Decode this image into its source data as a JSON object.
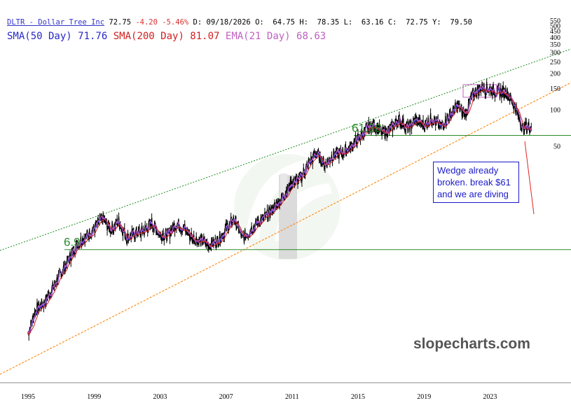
{
  "header": {
    "symbol": "DLTR - Dollar Tree Inc",
    "last": "72.75",
    "change": "-4.20",
    "change_pct": "-5.46%",
    "date_label": "D:",
    "date": "09/18/2026",
    "open_label": "O:",
    "open": "64.75",
    "high_label": "H:",
    "high": "78.35",
    "low_label": "L:",
    "low": "63.16",
    "close_label": "C:",
    "close": "72.75",
    "y_label": "Y:",
    "y_value": "79.50"
  },
  "indicators": [
    {
      "text": "SMA(50 Day) 71.76",
      "color": "#2828c8"
    },
    {
      "text": "SMA(200 Day) 81.07",
      "color": "#d02020"
    },
    {
      "text": "EMA(21 Day) 68.63",
      "color": "#c060c0"
    }
  ],
  "annotations": {
    "note": "Wedge already broken. break $61 and we are diving",
    "level_low": "6.9",
    "level_high": "61.38",
    "watermark": "slopecharts.com"
  },
  "colors": {
    "price": "#000000",
    "sma50": "#2828c8",
    "sma200": "#d02020",
    "ema21": "#c060c0",
    "support": "#2a8a2a",
    "upper_trend": "#1a8a1a",
    "lower_trend": "#ff8c1a",
    "note_border": "#1a1acc",
    "arrow": "#e02020"
  },
  "chart_data": {
    "type": "line",
    "y_scale": "log",
    "x_ticks": [
      "1995",
      "1999",
      "2003",
      "2007",
      "2011",
      "2015",
      "2019",
      "2023"
    ],
    "y_ticks": [
      50,
      100,
      150,
      200,
      250,
      300,
      350,
      400,
      450,
      500,
      550
    ],
    "y_tick_labels": [
      "50",
      "100",
      "150",
      "200",
      "250",
      "300",
      "350",
      "400",
      "450",
      "500",
      "550"
    ],
    "series": [
      {
        "x": [
          1995.0,
          1995.5,
          1996.0,
          1996.5,
          1997.0,
          1997.5,
          1998.0,
          1998.5,
          1999.0,
          1999.5,
          2000.0,
          2000.5,
          2001.0,
          2001.5,
          2002.0,
          2002.5,
          2003.0,
          2003.5,
          2004.0,
          2004.5,
          2005.0,
          2005.5,
          2006.0,
          2006.5,
          2007.0,
          2007.5,
          2008.0,
          2008.5,
          2009.0,
          2009.5,
          2010.0,
          2010.5,
          2011.0,
          2011.5,
          2012.0,
          2012.5,
          2013.0,
          2013.5,
          2014.0,
          2014.5,
          2015.0,
          2015.5,
          2016.0,
          2016.5,
          2017.0,
          2017.5,
          2018.0,
          2018.5,
          2019.0,
          2019.5,
          2020.0,
          2020.5,
          2021.0,
          2021.5,
          2022.0,
          2022.5,
          2023.0,
          2023.5,
          2024.0,
          2024.5,
          2025.0,
          2025.5
        ],
        "values": [
          1.4,
          2.2,
          2.5,
          3.3,
          4.4,
          5.8,
          7.8,
          8.8,
          10.2,
          12.5,
          10.2,
          11.8,
          8.6,
          9.5,
          9.8,
          11.5,
          9.2,
          9.2,
          11.5,
          10.2,
          8.6,
          8.1,
          7.6,
          8.2,
          10.2,
          12.4,
          8.5,
          10.2,
          11.8,
          13.2,
          15.8,
          19.5,
          24.5,
          27.2,
          35.5,
          43.5,
          35.0,
          42.5,
          44.0,
          48.5,
          57.0,
          68.5,
          75.5,
          63.5,
          70.5,
          82.5,
          70.0,
          82.0,
          74.0,
          86.0,
          71.0,
          88.0,
          107.0,
          93.0,
          138.0,
          155.0,
          148.0,
          140.0,
          140.0,
          108.0,
          70.0,
          72.7
        ]
      }
    ],
    "support_levels": [
      6.9,
      61.38
    ]
  }
}
